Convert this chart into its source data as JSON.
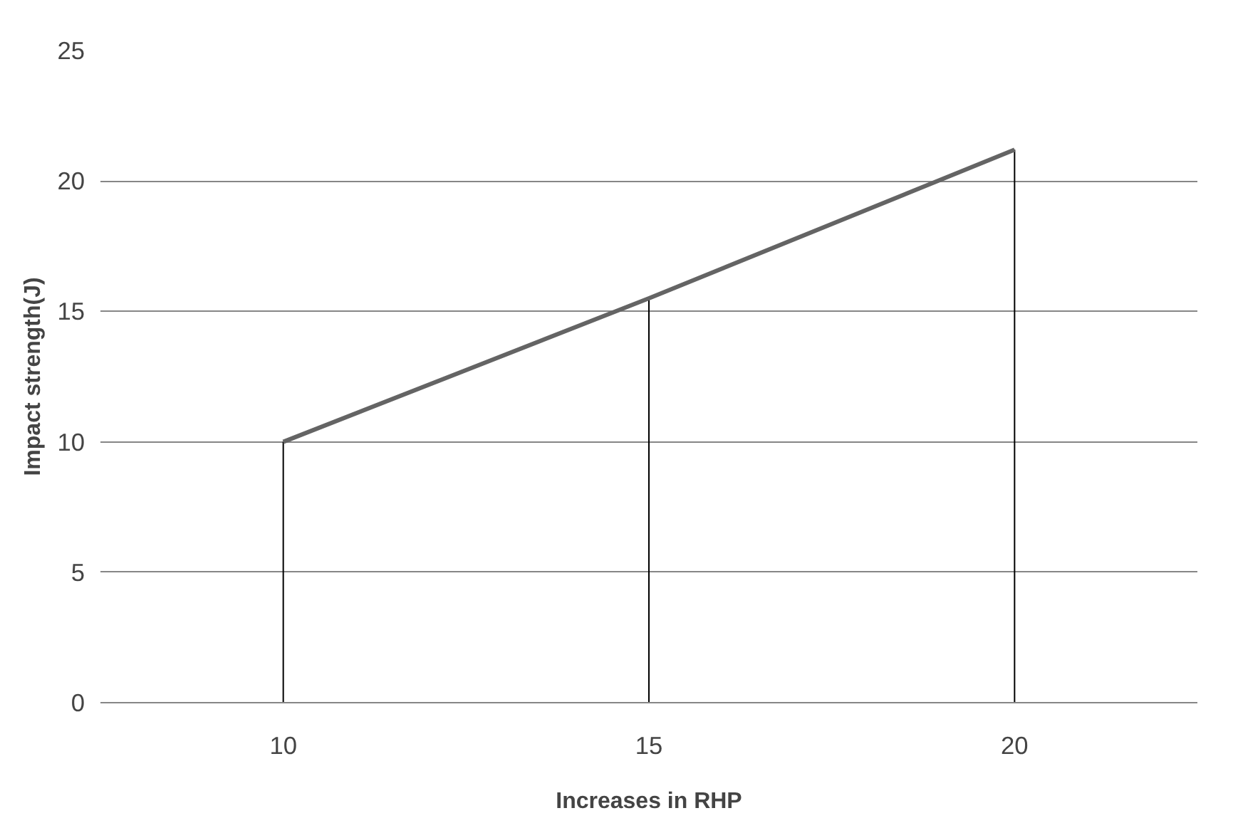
{
  "chart_data": {
    "type": "line",
    "categories": [
      "10",
      "15",
      "20"
    ],
    "series": [
      {
        "color": "#646464",
        "values": [
          10,
          15.5,
          21.2
        ],
        "errors": [
          [
            0,
            10
          ],
          [
            0,
            15.5
          ],
          [
            0,
            21.2
          ]
        ]
      }
    ],
    "xlabel": "Increases in RHP",
    "ylabel": "Impact strength(J)",
    "ylim": [
      0,
      25
    ],
    "yticks": [
      0,
      5,
      10,
      15,
      20,
      25
    ],
    "grid": "y",
    "marker": "none",
    "line_style": "solid"
  }
}
